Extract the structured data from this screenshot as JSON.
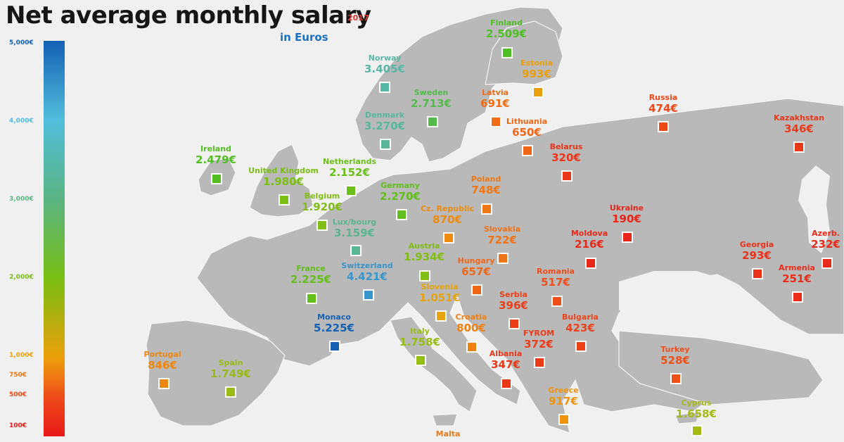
{
  "header": {
    "title": "Net average monthly salary",
    "year": "2017",
    "subtitle": "in Euros"
  },
  "legend": {
    "ticks": [
      {
        "label": "5,000€",
        "value": 5000
      },
      {
        "label": "4,000€",
        "value": 4000
      },
      {
        "label": "3,000€",
        "value": 3000
      },
      {
        "label": "2,000€",
        "value": 2000
      },
      {
        "label": "1,000€",
        "value": 1000
      },
      {
        "label": "750€",
        "value": 750
      },
      {
        "label": "500€",
        "value": 500
      },
      {
        "label": "100€",
        "value": 100
      }
    ]
  },
  "countries": [
    {
      "name": "Finland",
      "salary": "2.509€",
      "amount": 2509
    },
    {
      "name": "Norway",
      "salary": "3.405€",
      "amount": 3405
    },
    {
      "name": "Estonia",
      "salary": "993€",
      "amount": 993
    },
    {
      "name": "Sweden",
      "salary": "2.713€",
      "amount": 2713
    },
    {
      "name": "Latvia",
      "salary": "691€",
      "amount": 691
    },
    {
      "name": "Russia",
      "salary": "474€",
      "amount": 474
    },
    {
      "name": "Denmark",
      "salary": "3.270€",
      "amount": 3270
    },
    {
      "name": "Lithuania",
      "salary": "650€",
      "amount": 650
    },
    {
      "name": "Kazakhstan",
      "salary": "346€",
      "amount": 346
    },
    {
      "name": "Ireland",
      "salary": "2.479€",
      "amount": 2479
    },
    {
      "name": "Netherlands",
      "salary": "2.152€",
      "amount": 2152
    },
    {
      "name": "Belarus",
      "salary": "320€",
      "amount": 320
    },
    {
      "name": "United Kingdom",
      "salary": "1.980€",
      "amount": 1980
    },
    {
      "name": "Poland",
      "salary": "748€",
      "amount": 748
    },
    {
      "name": "Belgium",
      "salary": "1.920€",
      "amount": 1920
    },
    {
      "name": "Germany",
      "salary": "2.270€",
      "amount": 2270
    },
    {
      "name": "Ukraine",
      "salary": "190€",
      "amount": 190
    },
    {
      "name": "Cz. Republic",
      "salary": "870€",
      "amount": 870
    },
    {
      "name": "Lux/bourg",
      "salary": "3.159€",
      "amount": 3159
    },
    {
      "name": "Slovakia",
      "salary": "722€",
      "amount": 722
    },
    {
      "name": "Moldova",
      "salary": "216€",
      "amount": 216
    },
    {
      "name": "Georgia",
      "salary": "293€",
      "amount": 293
    },
    {
      "name": "Azerb.",
      "salary": "232€",
      "amount": 232
    },
    {
      "name": "Austria",
      "salary": "1.934€",
      "amount": 1934
    },
    {
      "name": "Hungary",
      "salary": "657€",
      "amount": 657
    },
    {
      "name": "France",
      "salary": "2.225€",
      "amount": 2225
    },
    {
      "name": "Switzerland",
      "salary": "4.421€",
      "amount": 4421
    },
    {
      "name": "Romania",
      "salary": "517€",
      "amount": 517
    },
    {
      "name": "Armenia",
      "salary": "251€",
      "amount": 251
    },
    {
      "name": "Slovenia",
      "salary": "1.051€",
      "amount": 1051
    },
    {
      "name": "Serbia",
      "salary": "396€",
      "amount": 396
    },
    {
      "name": "Monaco",
      "salary": "5.225€",
      "amount": 5225
    },
    {
      "name": "Croatia",
      "salary": "800€",
      "amount": 800
    },
    {
      "name": "Bulgaria",
      "salary": "423€",
      "amount": 423
    },
    {
      "name": "FYROM",
      "salary": "372€",
      "amount": 372
    },
    {
      "name": "Italy",
      "salary": "1.758€",
      "amount": 1758
    },
    {
      "name": "Portugal",
      "salary": "846€",
      "amount": 846
    },
    {
      "name": "Spain",
      "salary": "1.749€",
      "amount": 1749
    },
    {
      "name": "Albania",
      "salary": "347€",
      "amount": 347
    },
    {
      "name": "Turkey",
      "salary": "528€",
      "amount": 528
    },
    {
      "name": "Greece",
      "salary": "917€",
      "amount": 917
    },
    {
      "name": "Cyprus",
      "salary": "1.658€",
      "amount": 1658
    },
    {
      "name": "Malta",
      "salary": "",
      "amount": null
    }
  ]
}
